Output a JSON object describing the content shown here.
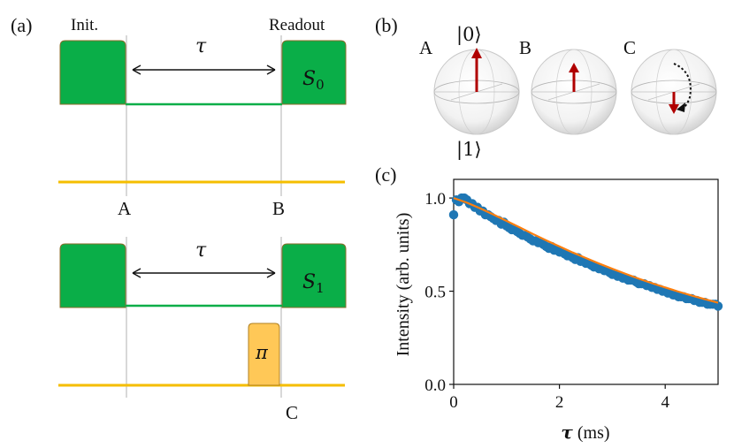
{
  "panel_a": {
    "label": "(a)",
    "init_label": "Init.",
    "readout_label": "Readout",
    "tau": "τ",
    "s0": "S",
    "s0_sub": "0",
    "s1": "S",
    "s1_sub": "1",
    "pi": "π",
    "point_a": "A",
    "point_b": "B",
    "point_c": "C",
    "colors": {
      "laser": "#0aae48",
      "laser_edge": "#8a6d2a",
      "mw": "#f5be00",
      "pi_fill": "#ffc857",
      "pi_edge": "#b08020",
      "guide": "#bfbfbf"
    }
  },
  "panel_b": {
    "label": "(b)",
    "spheres": [
      {
        "label": "A",
        "arrow": "up-full"
      },
      {
        "label": "B",
        "arrow": "up-half"
      },
      {
        "label": "C",
        "arrow": "down-half-rotating"
      }
    ],
    "ket0": "|0⟩",
    "ket1": "|1⟩",
    "colors": {
      "arrow": "#b00000",
      "sphere": "#d9d9d9"
    }
  },
  "panel_c": {
    "label": "(c)",
    "chart_data": {
      "type": "scatter",
      "xlabel_sym": "τ",
      "xlabel_unit": " (ms)",
      "ylabel": "Intensity (arb. units)",
      "xlim": [
        0,
        5
      ],
      "ylim": [
        0.0,
        1.1
      ],
      "xticks": [
        "0",
        "2",
        "4"
      ],
      "xtick_values": [
        0,
        2,
        4
      ],
      "yticks": [
        "0.0",
        "0.5",
        "1.0"
      ],
      "ytick_values": [
        0.0,
        0.5,
        1.0
      ],
      "series": [
        {
          "kind": "points",
          "color": "#1f77b4",
          "x": [
            0.0,
            0.05,
            0.1,
            0.15,
            0.2,
            0.25,
            0.3,
            0.35,
            0.4,
            0.45,
            0.5,
            0.55,
            0.6,
            0.65,
            0.7,
            0.75,
            0.8,
            0.85,
            0.9,
            0.95,
            1.0,
            1.05,
            1.1,
            1.15,
            1.2,
            1.25,
            1.3,
            1.35,
            1.4,
            1.45,
            1.5,
            1.55,
            1.6,
            1.65,
            1.7,
            1.75,
            1.8,
            1.85,
            1.9,
            1.95,
            2.0,
            2.05,
            2.1,
            2.15,
            2.2,
            2.25,
            2.3,
            2.35,
            2.4,
            2.45,
            2.5,
            2.55,
            2.6,
            2.65,
            2.7,
            2.75,
            2.8,
            2.85,
            2.9,
            2.95,
            3.0,
            3.05,
            3.1,
            3.15,
            3.2,
            3.25,
            3.3,
            3.35,
            3.4,
            3.45,
            3.5,
            3.55,
            3.6,
            3.65,
            3.7,
            3.75,
            3.8,
            3.85,
            3.9,
            3.95,
            4.0,
            4.05,
            4.1,
            4.15,
            4.2,
            4.25,
            4.3,
            4.35,
            4.4,
            4.45,
            4.5,
            4.55,
            4.6,
            4.65,
            4.7,
            4.75,
            4.8,
            4.85,
            4.9,
            4.95,
            5.0
          ],
          "y": [
            0.91,
            0.99,
            0.98,
            1.0,
            1.0,
            0.99,
            0.97,
            0.97,
            0.95,
            0.95,
            0.93,
            0.93,
            0.91,
            0.91,
            0.9,
            0.89,
            0.88,
            0.88,
            0.86,
            0.87,
            0.85,
            0.84,
            0.83,
            0.83,
            0.82,
            0.81,
            0.8,
            0.8,
            0.79,
            0.78,
            0.77,
            0.77,
            0.76,
            0.76,
            0.75,
            0.74,
            0.73,
            0.74,
            0.72,
            0.72,
            0.71,
            0.71,
            0.7,
            0.69,
            0.69,
            0.68,
            0.67,
            0.68,
            0.66,
            0.66,
            0.65,
            0.65,
            0.64,
            0.63,
            0.63,
            0.62,
            0.62,
            0.61,
            0.61,
            0.6,
            0.59,
            0.59,
            0.58,
            0.58,
            0.57,
            0.57,
            0.56,
            0.56,
            0.56,
            0.55,
            0.54,
            0.54,
            0.54,
            0.53,
            0.53,
            0.52,
            0.52,
            0.51,
            0.51,
            0.5,
            0.5,
            0.49,
            0.49,
            0.48,
            0.48,
            0.47,
            0.47,
            0.47,
            0.46,
            0.46,
            0.46,
            0.45,
            0.45,
            0.44,
            0.44,
            0.44,
            0.43,
            0.43,
            0.43,
            0.43,
            0.42
          ]
        },
        {
          "kind": "fit",
          "color": "#ff7f0e",
          "x": [
            0,
            0.25,
            0.5,
            0.75,
            1,
            1.25,
            1.5,
            1.75,
            2,
            2.25,
            2.5,
            2.75,
            3,
            3.25,
            3.5,
            3.75,
            4,
            4.25,
            4.5,
            4.75,
            5
          ],
          "y": [
            1.0,
            0.975,
            0.945,
            0.912,
            0.877,
            0.842,
            0.807,
            0.773,
            0.74,
            0.708,
            0.678,
            0.648,
            0.62,
            0.593,
            0.567,
            0.543,
            0.52,
            0.498,
            0.477,
            0.457,
            0.438
          ]
        }
      ]
    }
  }
}
